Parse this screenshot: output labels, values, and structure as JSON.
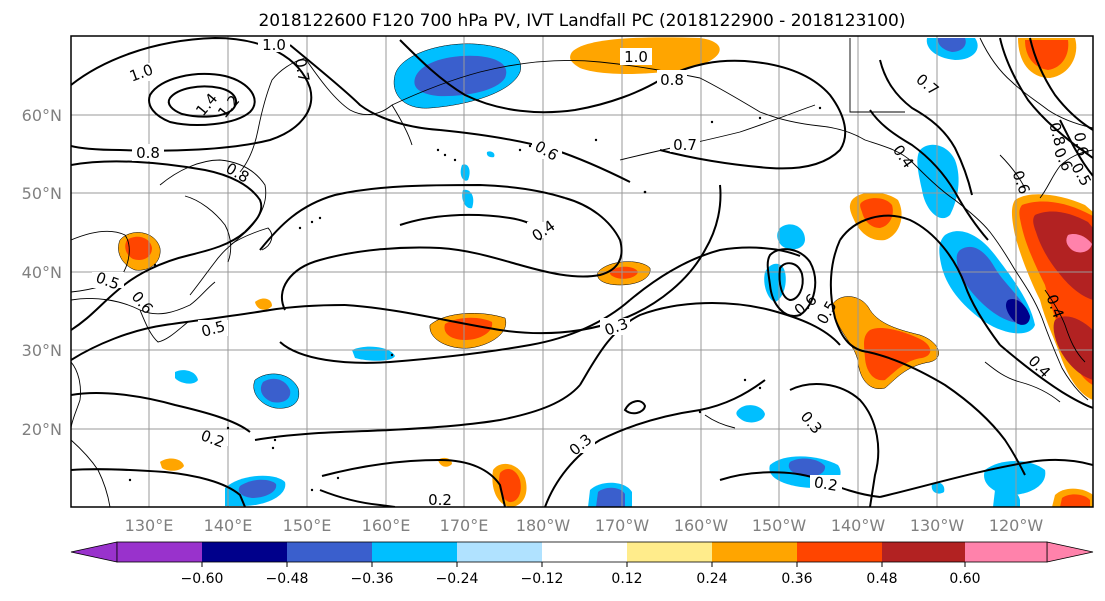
{
  "title": "2018122600 F120 700 hPa PV, IVT Landfall PC (2018122900 - 2018123100)",
  "lat_ticks": [
    "60°N",
    "50°N",
    "40°N",
    "30°N",
    "20°N"
  ],
  "lon_ticks": [
    "130°E",
    "140°E",
    "150°E",
    "160°E",
    "170°E",
    "180°W",
    "170°W",
    "160°W",
    "150°W",
    "140°W",
    "130°W",
    "120°W"
  ],
  "colorbar": {
    "colors": [
      "#9932cc",
      "#00008b",
      "#3a5fcd",
      "#00bfff",
      "#b0e2ff",
      "#ffffff",
      "#ffec8b",
      "#ffa500",
      "#ff4500",
      "#b22222",
      "#ff82ab"
    ],
    "tick_labels": [
      "−0.60",
      "−0.48",
      "−0.36",
      "−0.24",
      "−0.12",
      "0.12",
      "0.24",
      "0.36",
      "0.48",
      "0.60"
    ]
  },
  "contour_labels": [
    "1.0",
    "1.0",
    "1.4",
    "1.2",
    "0.8",
    "0.7",
    "0.8",
    "1.0",
    "0.8",
    "0.6",
    "0.7",
    "0.7",
    "0.5",
    "0.4",
    "0.4",
    "0.6",
    "0.5",
    "0.3",
    "0.6",
    "0.6",
    "0.5",
    "0.3",
    "0.3",
    "0.2",
    "0.2",
    "0.2",
    "0.4",
    "0.8",
    "0.6",
    "0.6",
    "0.4",
    "0.5"
  ]
}
